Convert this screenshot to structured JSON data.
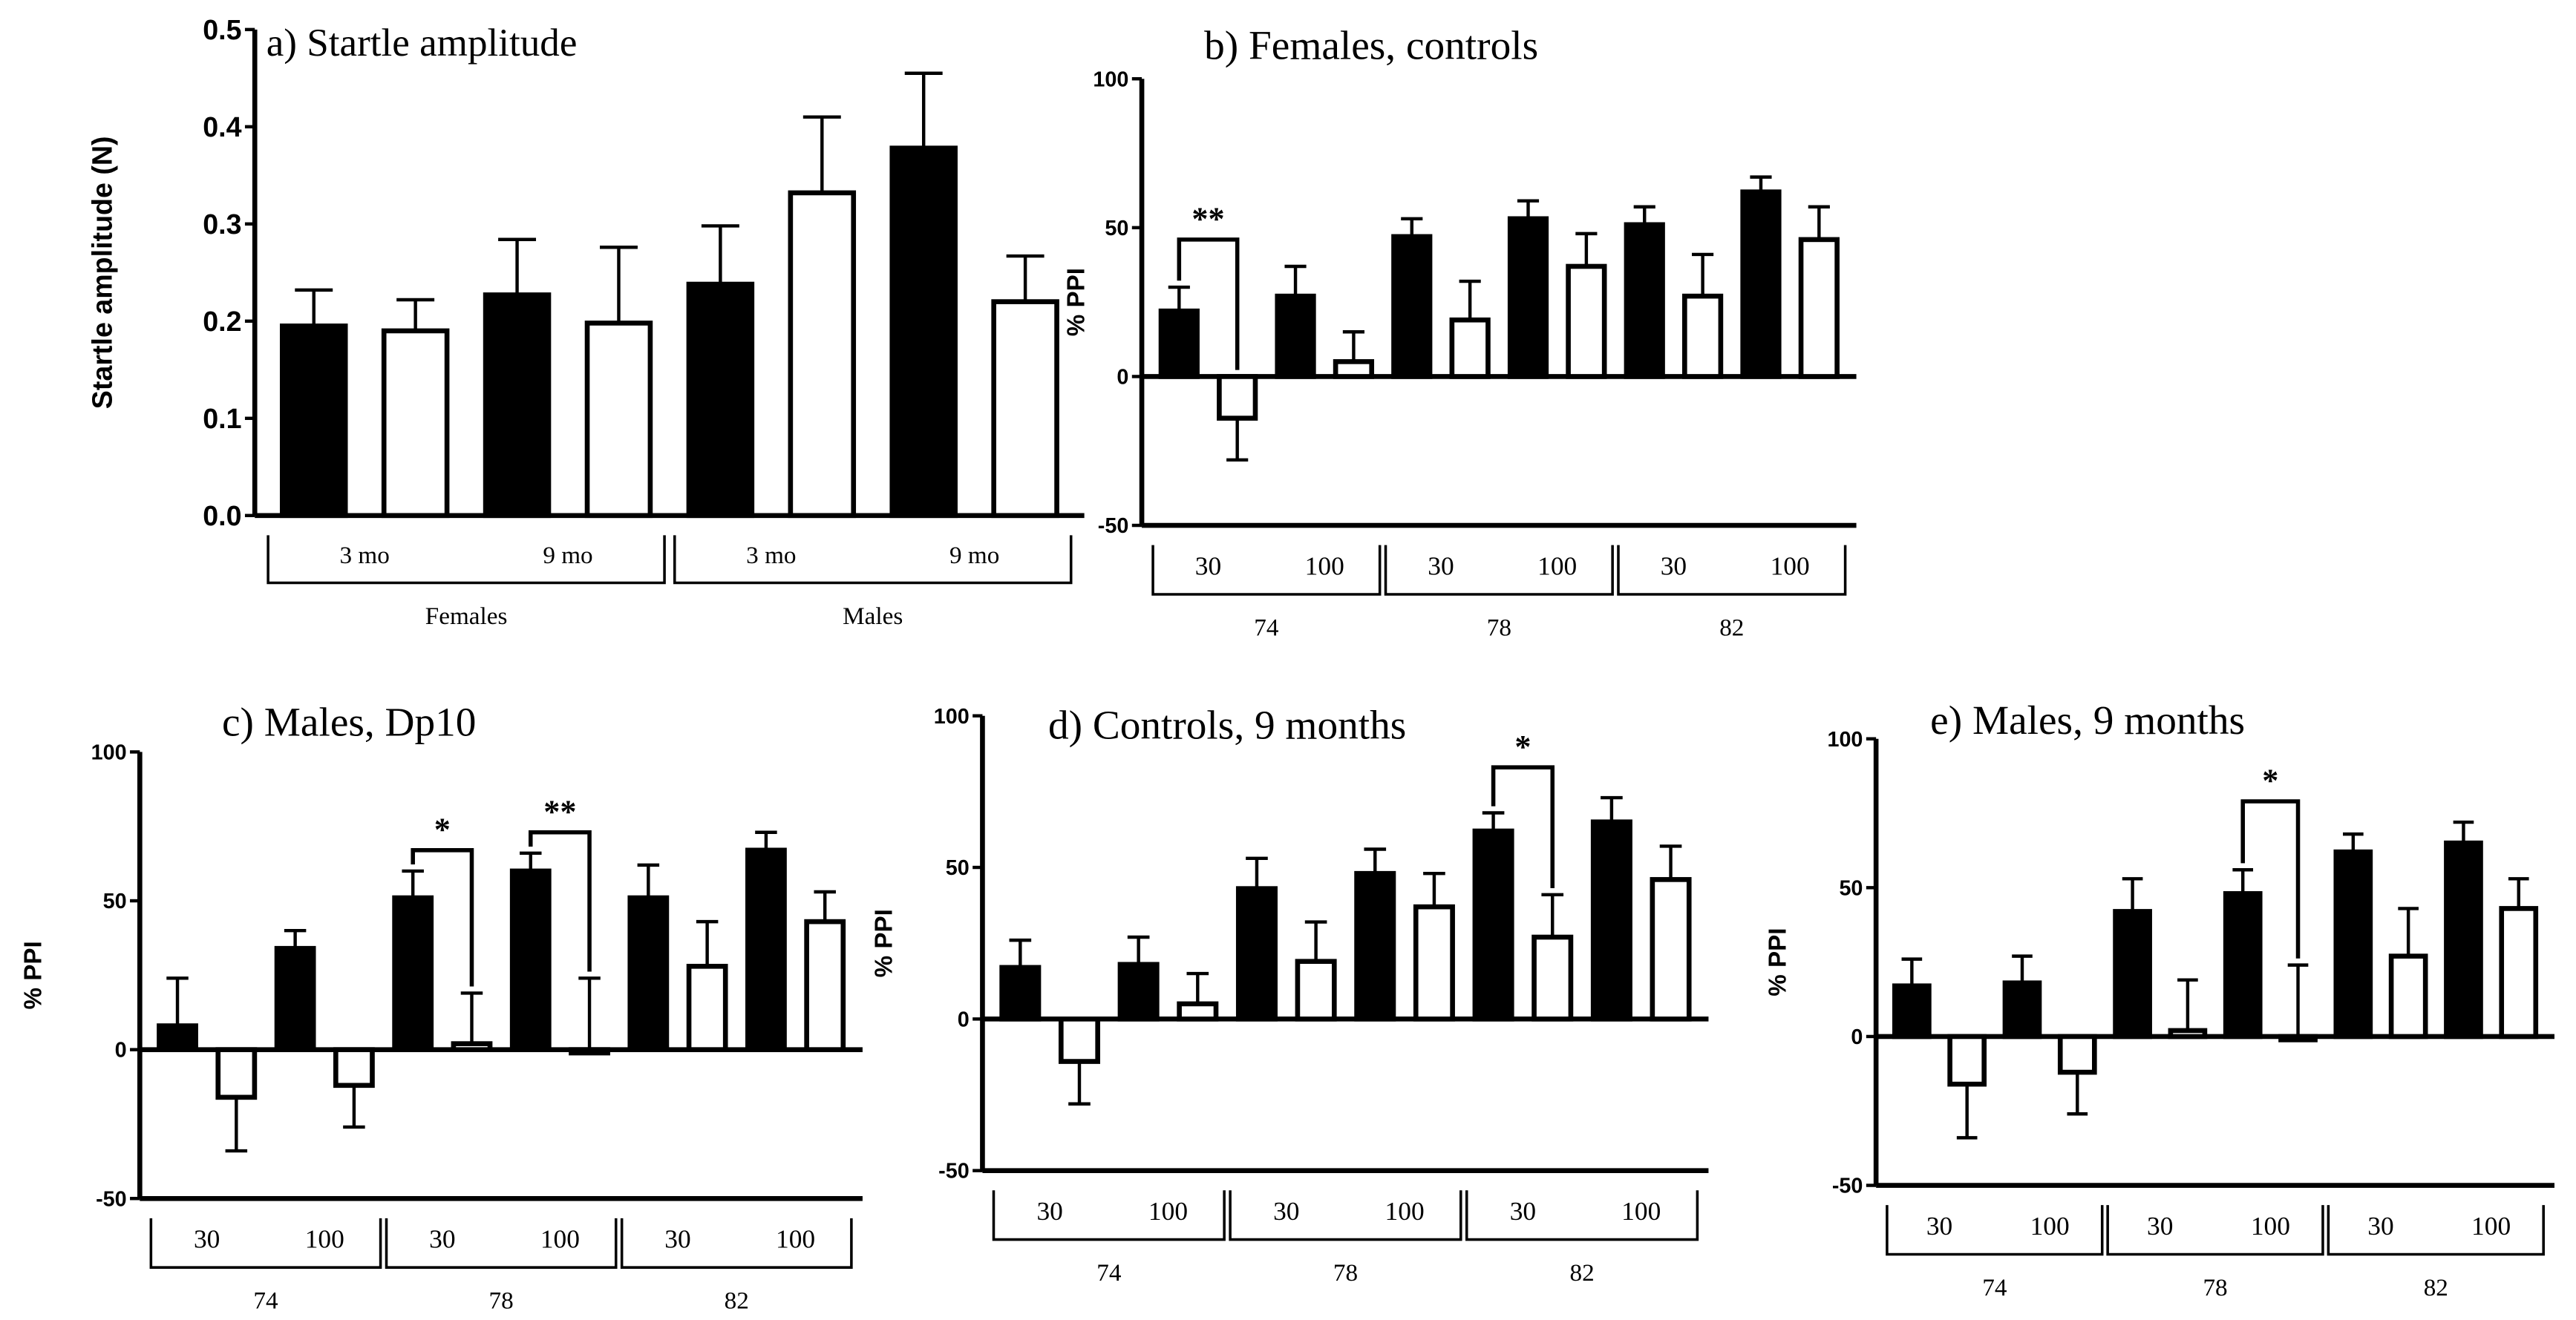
{
  "chart_data": [
    {
      "id": "a",
      "type": "bar",
      "title": "a) Startle amplitude",
      "ylabel": "Startle amplitude (N)",
      "ylim": [
        0,
        0.5
      ],
      "yticks": [
        "0.0",
        "0.1",
        "0.2",
        "0.3",
        "0.4",
        "0.5"
      ],
      "ytick_values": [
        0,
        0.1,
        0.2,
        0.3,
        0.4,
        0.5
      ],
      "groups": [
        {
          "label": "Females",
          "subgroups": [
            {
              "label": "3 mo",
              "black": {
                "value": 0.195,
                "error_top": 0.232
              },
              "white": {
                "value": 0.19,
                "error_top": 0.222
              }
            },
            {
              "label": "9 mo",
              "black": {
                "value": 0.227,
                "error_top": 0.284
              },
              "white": {
                "value": 0.198,
                "error_top": 0.276
              }
            }
          ]
        },
        {
          "label": "Males",
          "subgroups": [
            {
              "label": "3 mo",
              "black": {
                "value": 0.238,
                "error_top": 0.298
              },
              "white": {
                "value": 0.332,
                "error_top": 0.41
              }
            },
            {
              "label": "9 mo",
              "black": {
                "value": 0.378,
                "error_top": 0.455
              },
              "white": {
                "value": 0.22,
                "error_top": 0.267
              }
            }
          ]
        }
      ],
      "annotations": []
    },
    {
      "id": "b",
      "type": "bar",
      "title": "b) Females, controls",
      "ylabel": "% PPI",
      "ylim": [
        -50,
        100
      ],
      "yticks": [
        "-50",
        "0",
        "50",
        "100"
      ],
      "ytick_values": [
        -50,
        0,
        50,
        100
      ],
      "groups": [
        {
          "label": "74",
          "subgroups": [
            {
              "label": "30",
              "black": {
                "value": 22,
                "error_top": 30
              },
              "white": {
                "value": -14,
                "error_top": -28
              }
            },
            {
              "label": "100",
              "black": {
                "value": 27,
                "error_top": 37
              },
              "white": {
                "value": 5,
                "error_top": 15
              }
            }
          ]
        },
        {
          "label": "78",
          "subgroups": [
            {
              "label": "30",
              "black": {
                "value": 47,
                "error_top": 53
              },
              "white": {
                "value": 19,
                "error_top": 32
              }
            },
            {
              "label": "100",
              "black": {
                "value": 53,
                "error_top": 59
              },
              "white": {
                "value": 37,
                "error_top": 48
              }
            }
          ]
        },
        {
          "label": "82",
          "subgroups": [
            {
              "label": "30",
              "black": {
                "value": 51,
                "error_top": 57
              },
              "white": {
                "value": 27,
                "error_top": 41
              }
            },
            {
              "label": "100",
              "black": {
                "value": 62,
                "error_top": 67
              },
              "white": {
                "value": 46,
                "error_top": 57
              }
            }
          ]
        }
      ],
      "annotations": [
        {
          "group": 0,
          "subgroup": 0,
          "text": "**",
          "level": 46
        }
      ]
    },
    {
      "id": "c",
      "type": "bar",
      "title": "c) Males, Dp10",
      "ylabel": "% PPI",
      "ylim": [
        -50,
        100
      ],
      "yticks": [
        "-50",
        "0",
        "50",
        "100"
      ],
      "ytick_values": [
        -50,
        0,
        50,
        100
      ],
      "groups": [
        {
          "label": "74",
          "subgroups": [
            {
              "label": "30",
              "black": {
                "value": 8,
                "error_top": 24
              },
              "white": {
                "value": -16,
                "error_top": -34
              }
            },
            {
              "label": "100",
              "black": {
                "value": 34,
                "error_top": 40
              },
              "white": {
                "value": -12,
                "error_top": -26
              }
            }
          ]
        },
        {
          "label": "78",
          "subgroups": [
            {
              "label": "30",
              "black": {
                "value": 51,
                "error_top": 60
              },
              "white": {
                "value": 2,
                "error_top": 19
              }
            },
            {
              "label": "100",
              "black": {
                "value": 60,
                "error_top": 66
              },
              "white": {
                "value": 0,
                "error_top": 24
              }
            }
          ]
        },
        {
          "label": "82",
          "subgroups": [
            {
              "label": "30",
              "black": {
                "value": 51,
                "error_top": 62
              },
              "white": {
                "value": 28,
                "error_top": 43
              }
            },
            {
              "label": "100",
              "black": {
                "value": 67,
                "error_top": 73
              },
              "white": {
                "value": 43,
                "error_top": 53
              }
            }
          ]
        }
      ],
      "annotations": [
        {
          "group": 1,
          "subgroup": 0,
          "text": "*",
          "level": 67
        },
        {
          "group": 1,
          "subgroup": 1,
          "text": "**",
          "level": 73
        }
      ]
    },
    {
      "id": "d",
      "type": "bar",
      "title": "d) Controls, 9 months",
      "ylabel": "% PPI",
      "ylim": [
        -50,
        100
      ],
      "yticks": [
        "-50",
        "0",
        "50",
        "100"
      ],
      "ytick_values": [
        -50,
        0,
        50,
        100
      ],
      "groups": [
        {
          "label": "74",
          "subgroups": [
            {
              "label": "30",
              "black": {
                "value": 17,
                "error_top": 26
              },
              "white": {
                "value": -14,
                "error_top": -28
              }
            },
            {
              "label": "100",
              "black": {
                "value": 18,
                "error_top": 27
              },
              "white": {
                "value": 5,
                "error_top": 15
              }
            }
          ]
        },
        {
          "label": "78",
          "subgroups": [
            {
              "label": "30",
              "black": {
                "value": 43,
                "error_top": 53
              },
              "white": {
                "value": 19,
                "error_top": 32
              }
            },
            {
              "label": "100",
              "black": {
                "value": 48,
                "error_top": 56
              },
              "white": {
                "value": 37,
                "error_top": 48
              }
            }
          ]
        },
        {
          "label": "82",
          "subgroups": [
            {
              "label": "30",
              "black": {
                "value": 62,
                "error_top": 68
              },
              "white": {
                "value": 27,
                "error_top": 41
              }
            },
            {
              "label": "100",
              "black": {
                "value": 65,
                "error_top": 73
              },
              "white": {
                "value": 46,
                "error_top": 57
              }
            }
          ]
        }
      ],
      "annotations": [
        {
          "group": 2,
          "subgroup": 0,
          "text": "*",
          "level": 83
        }
      ]
    },
    {
      "id": "e",
      "type": "bar",
      "title": "e) Males, 9 months",
      "ylabel": "% PPI",
      "ylim": [
        -50,
        100
      ],
      "yticks": [
        "-50",
        "0",
        "50",
        "100"
      ],
      "ytick_values": [
        -50,
        0,
        50,
        100
      ],
      "groups": [
        {
          "label": "74",
          "subgroups": [
            {
              "label": "30",
              "black": {
                "value": 17,
                "error_top": 26
              },
              "white": {
                "value": -16,
                "error_top": -34
              }
            },
            {
              "label": "100",
              "black": {
                "value": 18,
                "error_top": 27
              },
              "white": {
                "value": -12,
                "error_top": -26
              }
            }
          ]
        },
        {
          "label": "78",
          "subgroups": [
            {
              "label": "30",
              "black": {
                "value": 42,
                "error_top": 53
              },
              "white": {
                "value": 2,
                "error_top": 19
              }
            },
            {
              "label": "100",
              "black": {
                "value": 48,
                "error_top": 56
              },
              "white": {
                "value": 0,
                "error_top": 24
              }
            }
          ]
        },
        {
          "label": "82",
          "subgroups": [
            {
              "label": "30",
              "black": {
                "value": 62,
                "error_top": 68
              },
              "white": {
                "value": 27,
                "error_top": 43
              }
            },
            {
              "label": "100",
              "black": {
                "value": 65,
                "error_top": 72
              },
              "white": {
                "value": 43,
                "error_top": 53
              }
            }
          ]
        }
      ],
      "annotations": [
        {
          "group": 1,
          "subgroup": 1,
          "text": "*",
          "level": 79
        }
      ]
    }
  ]
}
